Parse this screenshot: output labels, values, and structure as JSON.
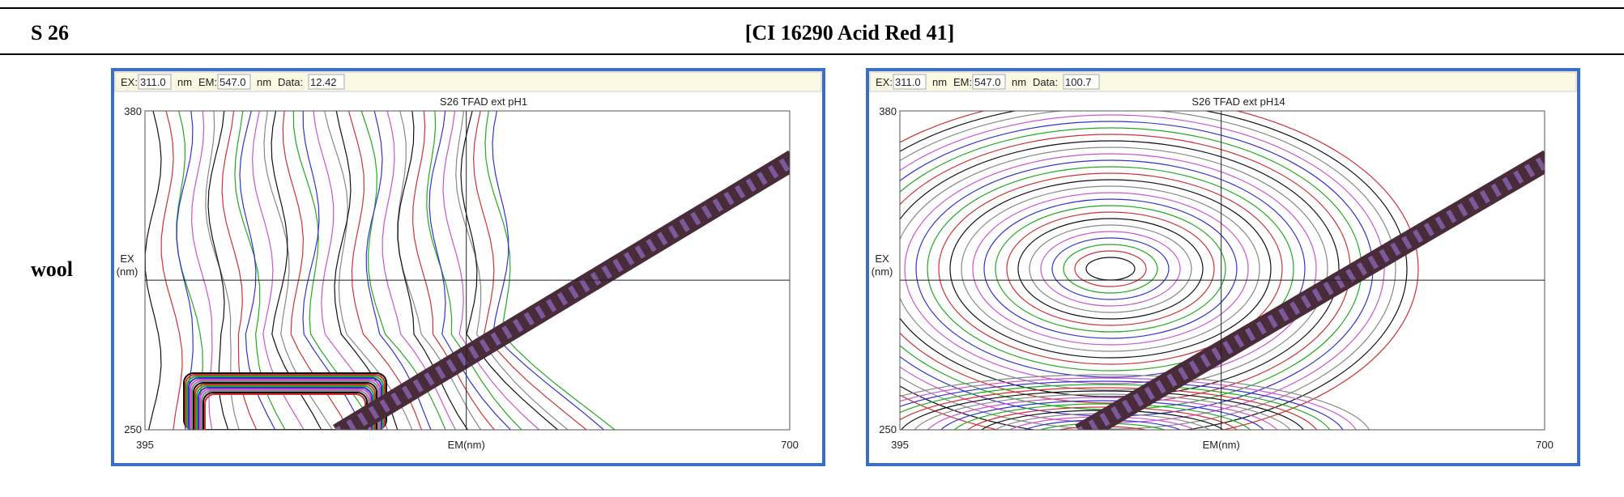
{
  "header": {
    "label": "S 26",
    "title": "[CI 16290 Acid Red 41]"
  },
  "row_label": "wool",
  "panels": [
    {
      "status": {
        "ex_label": "EX:",
        "ex": "311.0",
        "ex_unit": "nm",
        "em_label": "EM:",
        "em": "547.0",
        "em_unit": "nm",
        "data_label": "Data:",
        "data": "12.42"
      },
      "title": "S26 TFAD ext pH1",
      "y_label_top": "EX",
      "y_label_bottom": "(nm)",
      "x_label": "EM(nm)",
      "y_max": "380",
      "y_min": "250",
      "x_min": "395",
      "x_max": "700"
    },
    {
      "status": {
        "ex_label": "EX:",
        "ex": "311.0",
        "ex_unit": "nm",
        "em_label": "EM:",
        "em": "547.0",
        "em_unit": "nm",
        "data_label": "Data:",
        "data": "100.7"
      },
      "title": "S26 TFAD ext pH14",
      "y_label_top": "EX",
      "y_label_bottom": "(nm)",
      "x_label": "EM(nm)",
      "y_max": "380",
      "y_min": "250",
      "x_min": "395",
      "x_max": "700"
    }
  ]
}
